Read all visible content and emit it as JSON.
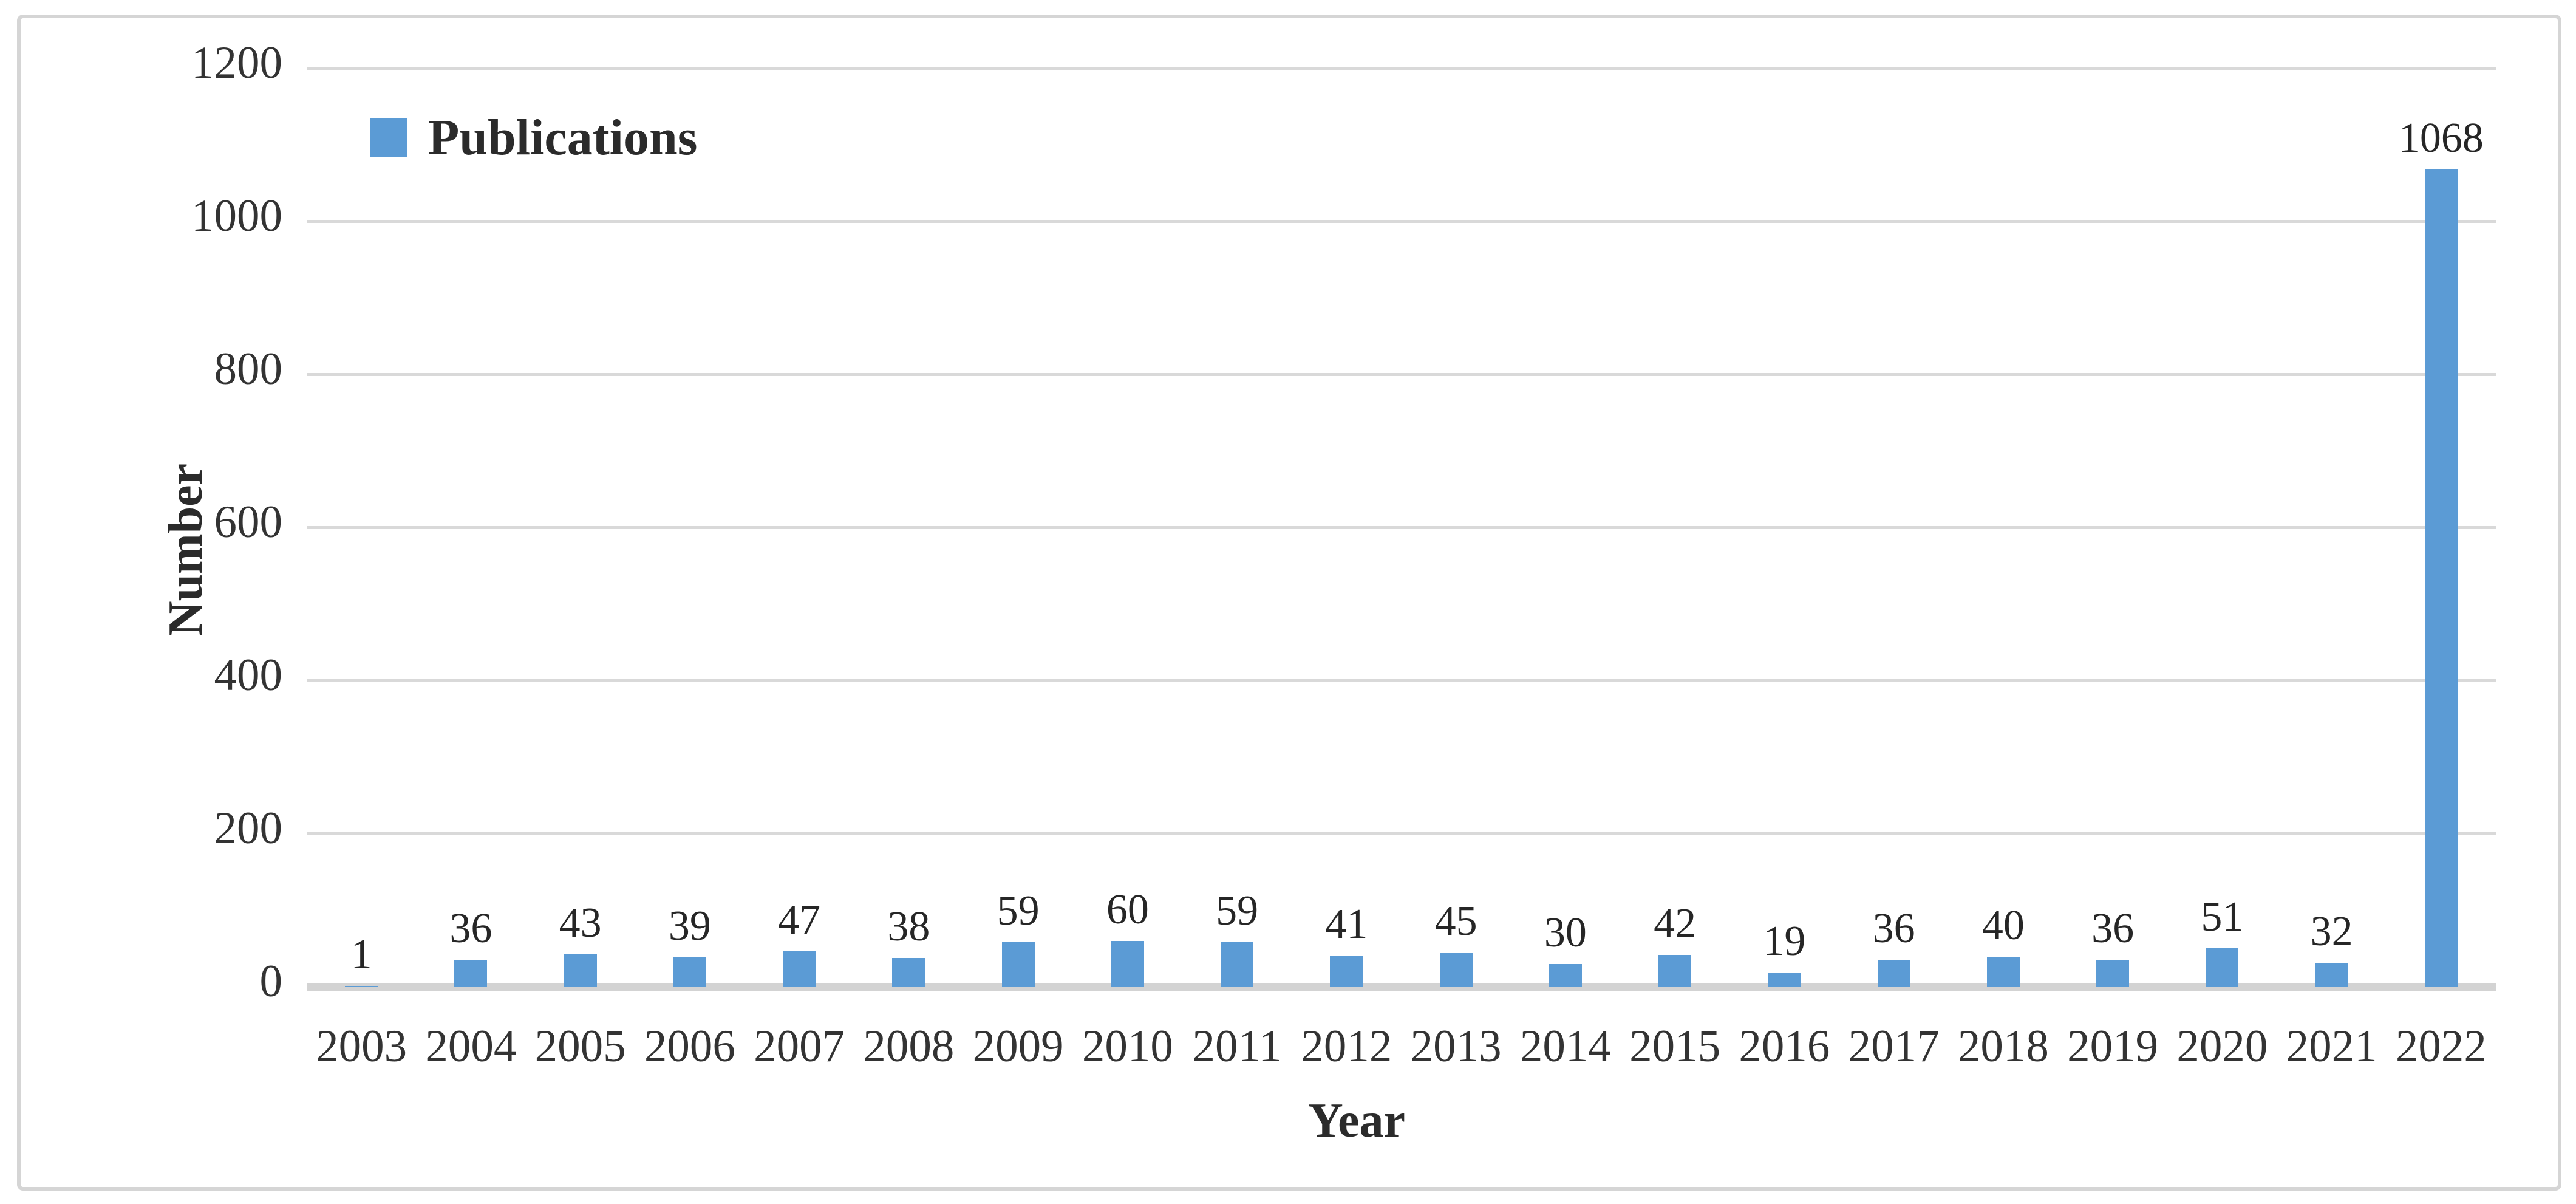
{
  "chart_data": {
    "type": "bar",
    "title": "",
    "categories": [
      "2003",
      "2004",
      "2005",
      "2006",
      "2007",
      "2008",
      "2009",
      "2010",
      "2011",
      "2012",
      "2013",
      "2014",
      "2015",
      "2016",
      "2017",
      "2018",
      "2019",
      "2020",
      "2021",
      "2022"
    ],
    "series": [
      {
        "name": "Publications",
        "values": [
          1,
          36,
          43,
          39,
          47,
          38,
          59,
          60,
          59,
          41,
          45,
          30,
          42,
          19,
          36,
          40,
          36,
          51,
          32,
          1068
        ]
      }
    ],
    "xlabel": "Year",
    "ylabel": "Number",
    "ylim": [
      0,
      1200
    ],
    "yticks": [
      0,
      200,
      400,
      600,
      800,
      1000,
      1200
    ],
    "grid": true,
    "data_labels": true,
    "legend_position": "top-left",
    "colors": {
      "bar": "#5B9BD5",
      "gridline": "#D9D9D9",
      "axis_line": "#D3D3D3",
      "tick_text": "#333333",
      "label_text": "#262626",
      "frame_border": "#D5D5D5"
    }
  },
  "legend": {
    "label": "Publications"
  },
  "axes": {
    "y_title": "Number",
    "x_title": "Year"
  }
}
